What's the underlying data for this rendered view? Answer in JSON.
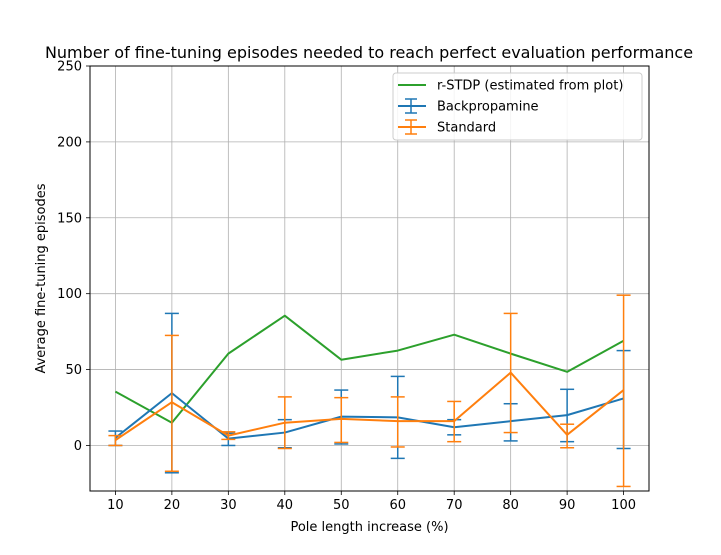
{
  "chart_data": {
    "type": "line",
    "title": "Number of fine-tuning episodes needed to reach perfect evaluation performance",
    "xlabel": "Pole length increase (%)",
    "ylabel": "Average fine-tuning episodes",
    "x": [
      10,
      20,
      30,
      40,
      50,
      60,
      70,
      80,
      90,
      100
    ],
    "xticks": [
      "10",
      "20",
      "30",
      "40",
      "50",
      "60",
      "70",
      "80",
      "90",
      "100"
    ],
    "yticks": [
      "0",
      "50",
      "100",
      "150",
      "200",
      "250"
    ],
    "xlim": [
      5.5,
      104.5
    ],
    "ylim": [
      -30,
      250
    ],
    "grid": true,
    "legend_position": "top-right",
    "series": [
      {
        "name": "r-STDP (estimated from plot)",
        "color": "#2ca02c",
        "values": [
          35.5,
          15,
          60.5,
          85.5,
          56.5,
          62.5,
          73,
          60.5,
          48.5,
          69
        ]
      },
      {
        "name": "Backpropamine",
        "color": "#1f77b4",
        "values": [
          5,
          34.5,
          4.5,
          8.5,
          19,
          18.5,
          12,
          16,
          20,
          31
        ],
        "error_low": [
          0,
          -18,
          0,
          -1.5,
          1,
          -8.5,
          7,
          3,
          2.5,
          -2
        ],
        "error_high": [
          9.5,
          87,
          8,
          17,
          36.5,
          45.5,
          17,
          27.5,
          37,
          62.5
        ]
      },
      {
        "name": "Standard",
        "color": "#ff7f0e",
        "values": [
          3.5,
          28.5,
          6.5,
          15,
          17.5,
          16,
          16,
          48,
          7,
          36.5
        ],
        "error_low": [
          0,
          -17,
          4,
          -2,
          2,
          -1,
          2.5,
          8.5,
          -1.5,
          -27
        ],
        "error_high": [
          6.5,
          72.5,
          9,
          32,
          31.5,
          32,
          29,
          87,
          14,
          99
        ]
      }
    ]
  }
}
